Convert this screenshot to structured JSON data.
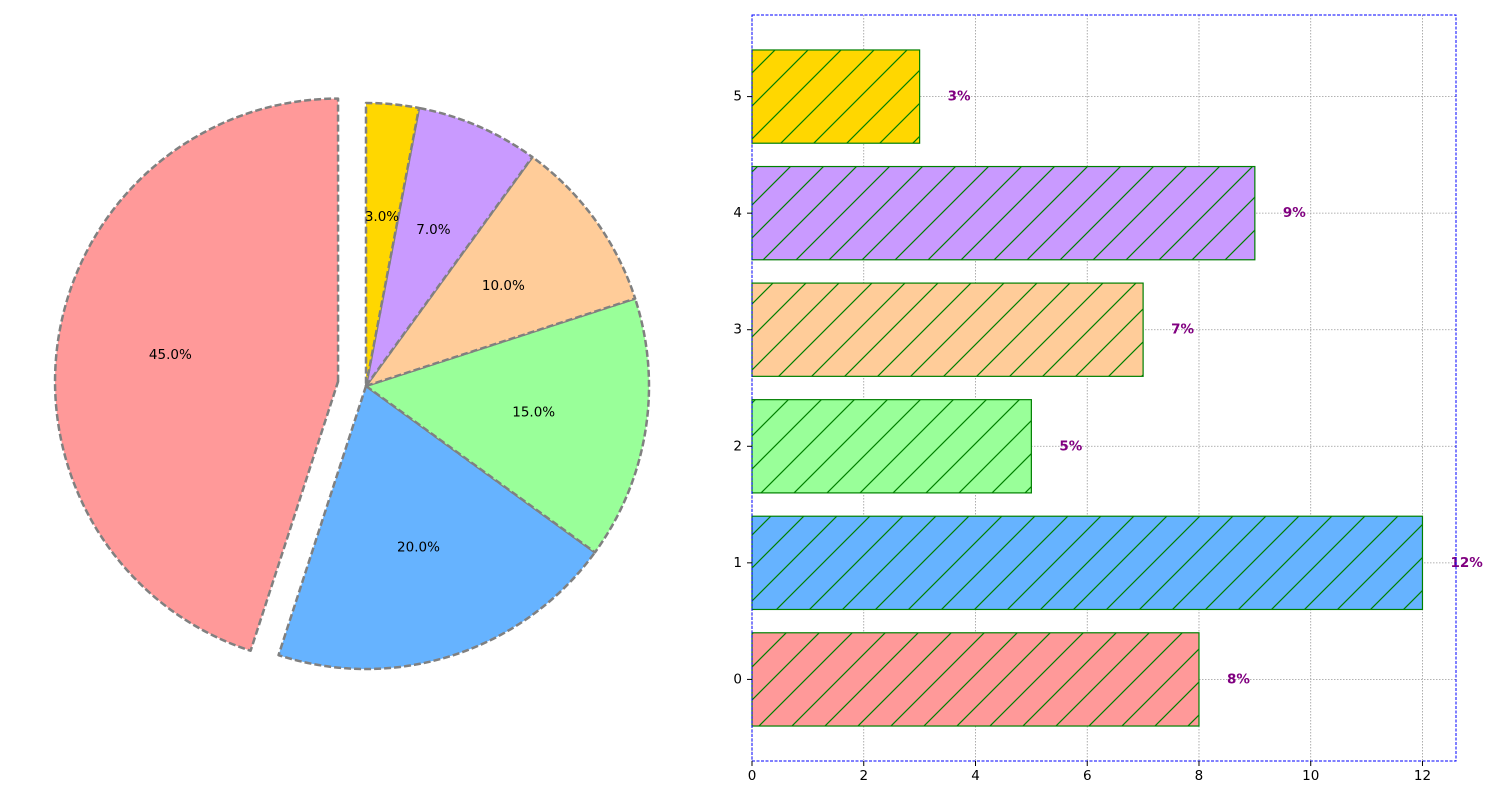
{
  "chart_data": [
    {
      "type": "pie",
      "slices": [
        {
          "label": "45.0%",
          "value": 45.0,
          "color": "#ff9999",
          "exploded": true
        },
        {
          "label": "20.0%",
          "value": 20.0,
          "color": "#66b3ff",
          "exploded": false
        },
        {
          "label": "15.0%",
          "value": 15.0,
          "color": "#99ff99",
          "exploded": false
        },
        {
          "label": "10.0%",
          "value": 10.0,
          "color": "#ffcc99",
          "exploded": false
        },
        {
          "label": "7.0%",
          "value": 7.0,
          "color": "#c99aff",
          "exploded": false
        },
        {
          "label": "3.0%",
          "value": 3.0,
          "color": "#ffd700",
          "exploded": false
        }
      ],
      "start_angle_deg": 90,
      "direction": "counterclockwise",
      "edge_color": "#808080",
      "edge_style": "dashed"
    },
    {
      "type": "bar",
      "orientation": "horizontal",
      "categories": [
        "0",
        "1",
        "2",
        "3",
        "4",
        "5"
      ],
      "values": [
        8,
        12,
        5,
        7,
        9,
        3
      ],
      "data_labels": [
        "8%",
        "12%",
        "5%",
        "7%",
        "9%",
        "3%"
      ],
      "colors": [
        "#ff9999",
        "#66b3ff",
        "#99ff99",
        "#ffcc99",
        "#c99aff",
        "#ffd700"
      ],
      "hatch": "/",
      "hatch_color": "#008000",
      "edge_color": "#008000",
      "label_color": "#800080",
      "xlim": [
        0,
        12.6
      ],
      "ylim": [
        -0.7,
        5.7
      ],
      "x_ticks": [
        "0",
        "2",
        "4",
        "6",
        "8",
        "10",
        "12"
      ],
      "x_tick_values": [
        0,
        2,
        4,
        6,
        8,
        10,
        12
      ],
      "y_ticks": [
        "0",
        "1",
        "2",
        "3",
        "4",
        "5"
      ],
      "grid": true,
      "frame_color": "#0000ff",
      "title": "",
      "xlabel": "",
      "ylabel": ""
    }
  ]
}
